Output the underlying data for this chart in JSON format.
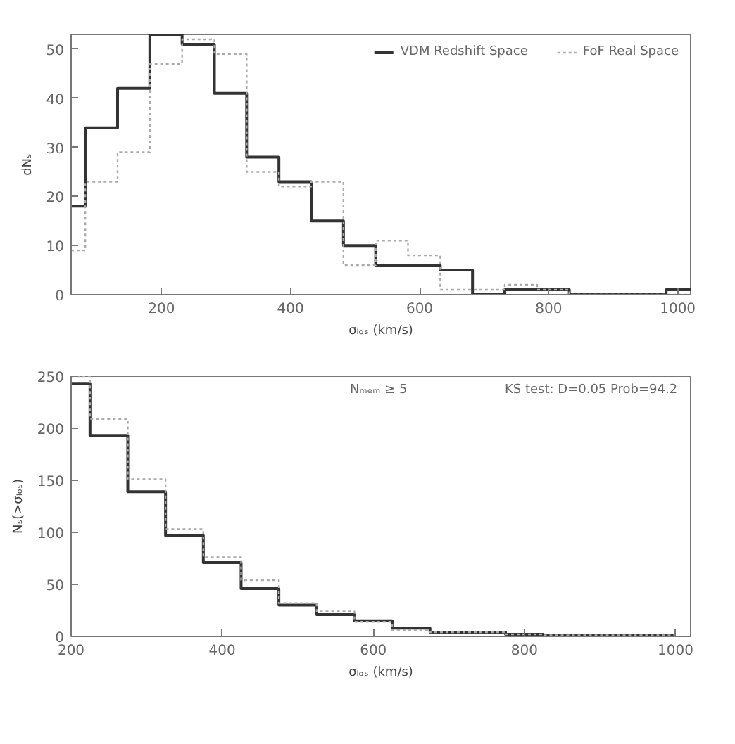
{
  "chart_data": [
    {
      "type": "histogram",
      "xlabel": "σₗₒₛ (km/s)",
      "ylabel": "dNₛ",
      "xlim": [
        60,
        1020
      ],
      "ylim": [
        0,
        53
      ],
      "xticks": [
        200,
        400,
        600,
        800,
        1000
      ],
      "yticks": [
        0,
        10,
        20,
        30,
        40,
        50
      ],
      "legend": "top right",
      "grid": false,
      "bins": [
        60,
        82,
        132,
        182,
        232,
        282,
        332,
        382,
        432,
        482,
        532,
        582,
        632,
        682,
        732,
        782,
        832,
        982,
        1020
      ],
      "series": [
        {
          "name": "VDM Redshift Space",
          "color": "#333333",
          "line_style": "solid",
          "values": [
            18,
            34,
            42,
            53,
            51,
            41,
            28,
            23,
            15,
            10,
            6,
            6,
            5,
            0,
            1,
            1,
            0,
            1
          ]
        },
        {
          "name": "FoF Real Space",
          "color": "#aaaaaa",
          "line_style": "dotted",
          "values": [
            9,
            23,
            29,
            47,
            52,
            49,
            25,
            22,
            23,
            6,
            11,
            8,
            1,
            1,
            2,
            1,
            0,
            0
          ]
        }
      ]
    },
    {
      "type": "histogram",
      "xlabel": "σₗₒₛ (km/s)",
      "ylabel": "Nₛ(>σₗₒₛ)",
      "xlim": [
        200,
        1020
      ],
      "ylim": [
        0,
        250
      ],
      "xticks": [
        200,
        400,
        600,
        800,
        1000
      ],
      "yticks": [
        0,
        50,
        100,
        150,
        200,
        250
      ],
      "grid": false,
      "annotations": [
        "Nₘₑₘ ≥ 5",
        "KS test: D=0.05    Prob=94.2"
      ],
      "bins": [
        200,
        225,
        275,
        325,
        375,
        425,
        475,
        525,
        575,
        625,
        675,
        775,
        825,
        1000
      ],
      "series": [
        {
          "color": "#333333",
          "line_style": "solid",
          "values": [
            243,
            193,
            139,
            97,
            71,
            46,
            30,
            21,
            15,
            8,
            4,
            2,
            1
          ]
        },
        {
          "color": "#aaaaaa",
          "line_style": "dotted",
          "values": [
            250,
            209,
            151,
            103,
            76,
            54,
            32,
            24,
            14,
            6,
            4,
            2,
            1
          ]
        }
      ]
    }
  ]
}
